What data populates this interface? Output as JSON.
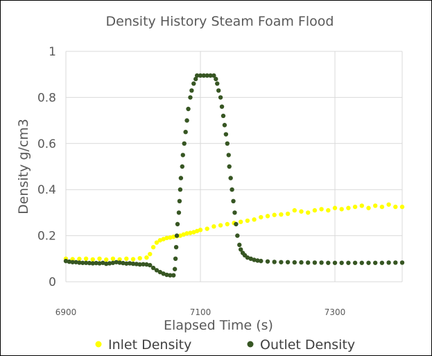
{
  "chart_data": {
    "type": "scatter",
    "title": "Density History Steam Foam Flood",
    "xlabel": "Elapsed Time (s)",
    "ylabel": "Density g/cm3",
    "xlim": [
      6900,
      7400
    ],
    "ylim": [
      0,
      1
    ],
    "x_ticks": [
      "6900",
      "7100",
      "7300"
    ],
    "y_ticks": [
      "0",
      "0.2",
      "0.4",
      "0.6",
      "0.8",
      "1"
    ],
    "grid": true,
    "legend": "bottom",
    "colors": {
      "inlet": "#ffff00",
      "outlet": "#375623",
      "grid": "#d9d9d9"
    },
    "series": [
      {
        "name": "Inlet Density",
        "points": [
          [
            6900,
            0.1
          ],
          [
            6910,
            0.098
          ],
          [
            6920,
            0.099
          ],
          [
            6930,
            0.1
          ],
          [
            6940,
            0.097
          ],
          [
            6950,
            0.1
          ],
          [
            6960,
            0.096
          ],
          [
            6970,
            0.1
          ],
          [
            6980,
            0.097
          ],
          [
            6990,
            0.1
          ],
          [
            7000,
            0.098
          ],
          [
            7010,
            0.102
          ],
          [
            7020,
            0.105
          ],
          [
            7025,
            0.12
          ],
          [
            7030,
            0.15
          ],
          [
            7035,
            0.17
          ],
          [
            7040,
            0.18
          ],
          [
            7045,
            0.185
          ],
          [
            7050,
            0.19
          ],
          [
            7055,
            0.192
          ],
          [
            7060,
            0.195
          ],
          [
            7065,
            0.198
          ],
          [
            7070,
            0.2
          ],
          [
            7075,
            0.205
          ],
          [
            7080,
            0.21
          ],
          [
            7085,
            0.212
          ],
          [
            7090,
            0.215
          ],
          [
            7095,
            0.22
          ],
          [
            7100,
            0.225
          ],
          [
            7110,
            0.23
          ],
          [
            7120,
            0.24
          ],
          [
            7130,
            0.245
          ],
          [
            7140,
            0.25
          ],
          [
            7150,
            0.255
          ],
          [
            7160,
            0.26
          ],
          [
            7170,
            0.265
          ],
          [
            7180,
            0.27
          ],
          [
            7190,
            0.28
          ],
          [
            7200,
            0.285
          ],
          [
            7210,
            0.29
          ],
          [
            7220,
            0.292
          ],
          [
            7230,
            0.295
          ],
          [
            7240,
            0.31
          ],
          [
            7250,
            0.305
          ],
          [
            7260,
            0.3
          ],
          [
            7270,
            0.31
          ],
          [
            7280,
            0.315
          ],
          [
            7290,
            0.31
          ],
          [
            7300,
            0.32
          ],
          [
            7310,
            0.315
          ],
          [
            7320,
            0.32
          ],
          [
            7330,
            0.325
          ],
          [
            7340,
            0.33
          ],
          [
            7350,
            0.32
          ],
          [
            7360,
            0.33
          ],
          [
            7370,
            0.325
          ],
          [
            7380,
            0.335
          ],
          [
            7390,
            0.325
          ],
          [
            7400,
            0.325
          ]
        ]
      },
      {
        "name": "Outlet Density",
        "points": [
          [
            6900,
            0.09
          ],
          [
            6905,
            0.087
          ],
          [
            6910,
            0.085
          ],
          [
            6915,
            0.085
          ],
          [
            6920,
            0.083
          ],
          [
            6925,
            0.082
          ],
          [
            6930,
            0.082
          ],
          [
            6935,
            0.081
          ],
          [
            6940,
            0.08
          ],
          [
            6945,
            0.081
          ],
          [
            6950,
            0.08
          ],
          [
            6955,
            0.082
          ],
          [
            6960,
            0.078
          ],
          [
            6965,
            0.08
          ],
          [
            6970,
            0.082
          ],
          [
            6975,
            0.085
          ],
          [
            6980,
            0.083
          ],
          [
            6985,
            0.081
          ],
          [
            6990,
            0.079
          ],
          [
            6995,
            0.08
          ],
          [
            7000,
            0.078
          ],
          [
            7005,
            0.077
          ],
          [
            7010,
            0.075
          ],
          [
            7015,
            0.076
          ],
          [
            7020,
            0.075
          ],
          [
            7025,
            0.072
          ],
          [
            7030,
            0.06
          ],
          [
            7035,
            0.05
          ],
          [
            7040,
            0.042
          ],
          [
            7045,
            0.035
          ],
          [
            7050,
            0.03
          ],
          [
            7055,
            0.028
          ],
          [
            7060,
            0.028
          ],
          [
            7062,
            0.055
          ],
          [
            7063,
            0.1
          ],
          [
            7064,
            0.15
          ],
          [
            7065,
            0.2
          ],
          [
            7066,
            0.25
          ],
          [
            7068,
            0.3
          ],
          [
            7069,
            0.35
          ],
          [
            7070,
            0.4
          ],
          [
            7071,
            0.45
          ],
          [
            7073,
            0.5
          ],
          [
            7074,
            0.55
          ],
          [
            7076,
            0.6
          ],
          [
            7078,
            0.65
          ],
          [
            7080,
            0.7
          ],
          [
            7082,
            0.75
          ],
          [
            7085,
            0.8
          ],
          [
            7087,
            0.83
          ],
          [
            7090,
            0.86
          ],
          [
            7093,
            0.88
          ],
          [
            7095,
            0.895
          ],
          [
            7100,
            0.895
          ],
          [
            7105,
            0.895
          ],
          [
            7110,
            0.895
          ],
          [
            7115,
            0.895
          ],
          [
            7120,
            0.895
          ],
          [
            7123,
            0.88
          ],
          [
            7125,
            0.86
          ],
          [
            7127,
            0.83
          ],
          [
            7130,
            0.8
          ],
          [
            7132,
            0.76
          ],
          [
            7134,
            0.72
          ],
          [
            7136,
            0.68
          ],
          [
            7138,
            0.64
          ],
          [
            7140,
            0.6
          ],
          [
            7142,
            0.55
          ],
          [
            7143,
            0.5
          ],
          [
            7145,
            0.45
          ],
          [
            7147,
            0.4
          ],
          [
            7149,
            0.35
          ],
          [
            7151,
            0.3
          ],
          [
            7153,
            0.25
          ],
          [
            7155,
            0.2
          ],
          [
            7158,
            0.16
          ],
          [
            7160,
            0.14
          ],
          [
            7163,
            0.125
          ],
          [
            7166,
            0.115
          ],
          [
            7170,
            0.105
          ],
          [
            7175,
            0.1
          ],
          [
            7180,
            0.095
          ],
          [
            7185,
            0.092
          ],
          [
            7190,
            0.09
          ],
          [
            7200,
            0.088
          ],
          [
            7210,
            0.086
          ],
          [
            7220,
            0.085
          ],
          [
            7230,
            0.085
          ],
          [
            7240,
            0.084
          ],
          [
            7250,
            0.084
          ],
          [
            7260,
            0.083
          ],
          [
            7270,
            0.083
          ],
          [
            7280,
            0.083
          ],
          [
            7290,
            0.082
          ],
          [
            7300,
            0.082
          ],
          [
            7310,
            0.082
          ],
          [
            7320,
            0.082
          ],
          [
            7330,
            0.082
          ],
          [
            7340,
            0.082
          ],
          [
            7350,
            0.082
          ],
          [
            7360,
            0.082
          ],
          [
            7370,
            0.082
          ],
          [
            7380,
            0.083
          ],
          [
            7390,
            0.083
          ],
          [
            7400,
            0.083
          ]
        ]
      }
    ]
  }
}
